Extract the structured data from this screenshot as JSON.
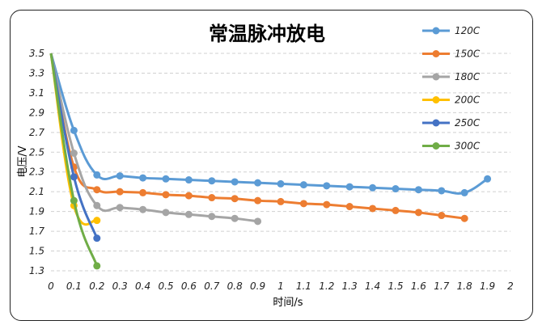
{
  "chart_data": {
    "type": "line",
    "title": "常温脉冲放电",
    "xlabel": "时间/s",
    "ylabel": "电压/V",
    "xlim": [
      0,
      2
    ],
    "ylim": [
      1.3,
      3.5
    ],
    "xticks": [
      "0",
      "0.1",
      "0.2",
      "0.3",
      "0.4",
      "0.5",
      "0.6",
      "0.7",
      "0.8",
      "0.9",
      "1",
      "1.1",
      "1.2",
      "1.3",
      "1.4",
      "1.5",
      "1.6",
      "1.7",
      "1.8",
      "1.9",
      "2"
    ],
    "yticks": [
      "3.5",
      "3.3",
      "3.1",
      "2.9",
      "2.7",
      "2.5",
      "2.3",
      "2.1",
      "1.9",
      "1.7",
      "1.5",
      "1.3"
    ],
    "grid": "horizontal dashed",
    "legend_position": "right",
    "series": [
      {
        "name": "120C",
        "color": "#5b9bd5",
        "x": [
          0,
          0.1,
          0.2,
          0.3,
          0.4,
          0.5,
          0.6,
          0.7,
          0.8,
          0.9,
          1.0,
          1.1,
          1.2,
          1.3,
          1.4,
          1.5,
          1.6,
          1.7,
          1.8,
          1.9
        ],
        "y": [
          3.5,
          2.72,
          2.27,
          2.26,
          2.24,
          2.23,
          2.22,
          2.21,
          2.2,
          2.19,
          2.18,
          2.17,
          2.16,
          2.15,
          2.14,
          2.13,
          2.12,
          2.11,
          2.09,
          2.23
        ]
      },
      {
        "name": "150C",
        "color": "#ed7d31",
        "x": [
          0,
          0.1,
          0.2,
          0.3,
          0.4,
          0.5,
          0.6,
          0.7,
          0.8,
          0.9,
          1.0,
          1.1,
          1.2,
          1.3,
          1.4,
          1.5,
          1.6,
          1.7,
          1.8
        ],
        "y": [
          3.5,
          2.35,
          2.12,
          2.1,
          2.09,
          2.07,
          2.06,
          2.04,
          2.03,
          2.01,
          2.0,
          1.98,
          1.97,
          1.95,
          1.93,
          1.91,
          1.89,
          1.86,
          1.83
        ]
      },
      {
        "name": "180C",
        "color": "#a5a5a5",
        "x": [
          0,
          0.1,
          0.2,
          0.3,
          0.4,
          0.5,
          0.6,
          0.7,
          0.8,
          0.9
        ],
        "y": [
          3.5,
          2.49,
          1.96,
          1.94,
          1.92,
          1.89,
          1.87,
          1.85,
          1.83,
          1.8
        ]
      },
      {
        "name": "200C",
        "color": "#ffc000",
        "x": [
          0,
          0.1,
          0.2
        ],
        "y": [
          3.5,
          1.96,
          1.81
        ]
      },
      {
        "name": "250C",
        "color": "#4472c4",
        "x": [
          0,
          0.1,
          0.2
        ],
        "y": [
          3.5,
          2.25,
          1.63
        ]
      },
      {
        "name": "300C",
        "color": "#70ad47",
        "x": [
          0,
          0.1,
          0.2
        ],
        "y": [
          3.5,
          2.01,
          1.35
        ]
      }
    ]
  }
}
